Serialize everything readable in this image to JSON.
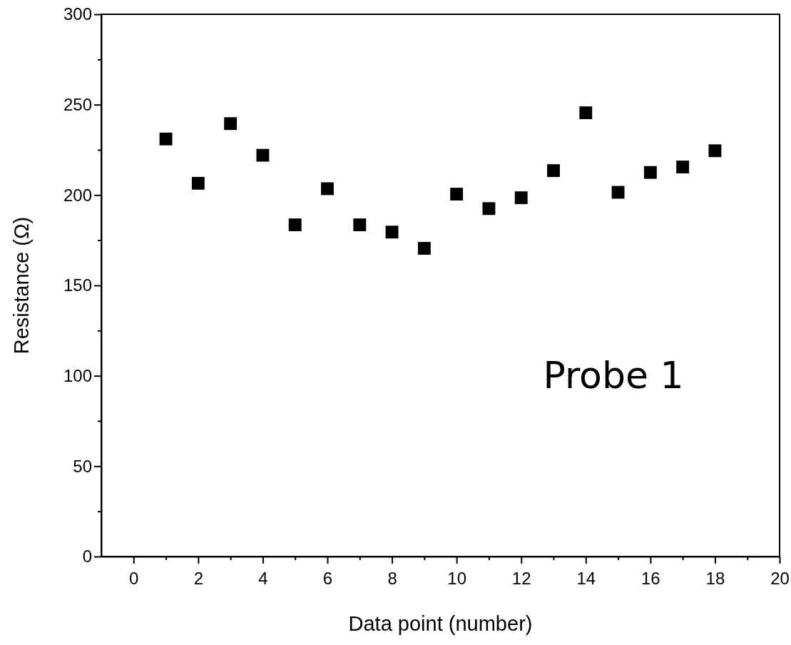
{
  "chart_data": {
    "type": "scatter",
    "xlabel": "Data point (number)",
    "ylabel": "Resistance (Ω)",
    "x": [
      1,
      2,
      3,
      4,
      5,
      6,
      7,
      8,
      9,
      10,
      11,
      12,
      13,
      14,
      15,
      16,
      17,
      18
    ],
    "values": [
      231,
      206.5,
      239.5,
      222,
      183.5,
      203.5,
      183.5,
      179.5,
      170.5,
      200.5,
      192.5,
      198.5,
      213.5,
      245.5,
      201.5,
      212.5,
      215.5,
      224.5
    ],
    "color": "#000000",
    "marker": "square",
    "xlim": [
      -1,
      20
    ],
    "xticks": [
      0,
      {
        "value": 1,
        "label": null
      },
      2,
      {
        "value": 3,
        "label": null
      },
      4,
      {
        "value": 5,
        "label": null
      },
      6,
      {
        "value": 7,
        "label": null
      },
      8,
      {
        "value": 9,
        "label": null
      },
      10,
      {
        "value": 11,
        "label": null
      },
      12,
      {
        "value": 13,
        "label": null
      },
      14,
      {
        "value": 15,
        "label": null
      },
      16,
      {
        "value": 17,
        "label": null
      },
      18,
      {
        "value": 19,
        "label": null
      },
      20
    ],
    "ylim": [
      0,
      300
    ],
    "yticks": [
      0,
      {
        "value": 25,
        "label": null
      },
      50,
      {
        "value": 75,
        "label": null
      },
      100,
      {
        "value": 125,
        "label": null
      },
      150,
      {
        "value": 175,
        "label": null
      },
      200,
      {
        "value": 225,
        "label": null
      },
      250,
      {
        "value": 275,
        "label": null
      },
      300
    ],
    "grid": false,
    "annotations": [
      "Probe 1"
    ]
  }
}
